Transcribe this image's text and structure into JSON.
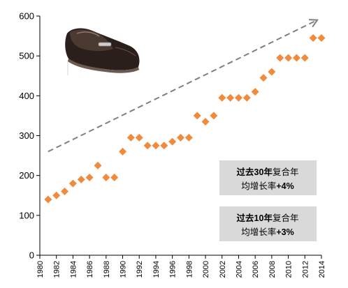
{
  "chart_data": {
    "type": "scatter",
    "title": "",
    "xlabel": "",
    "ylabel": "",
    "xlim": [
      1980,
      2014
    ],
    "ylim": [
      0,
      600
    ],
    "yticks": [
      0,
      100,
      200,
      300,
      400,
      500,
      600
    ],
    "xticks": [
      1980,
      1982,
      1984,
      1986,
      1988,
      1990,
      1992,
      1994,
      1996,
      1998,
      2000,
      2002,
      2004,
      2006,
      2008,
      2010,
      2012,
      2014
    ],
    "marker_color": "#F28A3C",
    "trend_color": "#7F7F7F",
    "grid": false,
    "series": [
      {
        "x": [
          1981,
          1982,
          1983,
          1984,
          1985,
          1986,
          1987,
          1988,
          1989,
          1990,
          1991,
          1992,
          1993,
          1994,
          1995,
          1996,
          1997,
          1998,
          1999,
          2000,
          2001,
          2002,
          2003,
          2004,
          2005,
          2006,
          2007,
          2008,
          2009,
          2010,
          2011,
          2012,
          2013,
          2014
        ],
        "y": [
          140,
          150,
          160,
          180,
          190,
          195,
          225,
          195,
          195,
          260,
          295,
          295,
          275,
          275,
          275,
          285,
          295,
          295,
          350,
          335,
          350,
          395,
          395,
          395,
          395,
          410,
          445,
          460,
          495,
          495,
          495,
          495,
          545,
          545
        ]
      }
    ],
    "trend_arrow": {
      "from": [
        1981,
        260
      ],
      "to": [
        2013.5,
        590
      ]
    },
    "annotations": [
      {
        "pre": "过去",
        "num": "30年",
        "mid": "复合年",
        "line2_pre": "均增长率",
        "line2_num": "+4%"
      },
      {
        "pre": "过去",
        "num": "10年",
        "mid": "复合年",
        "line2_pre": "均增长率",
        "line2_num": "+3%"
      }
    ],
    "image": "loafer-shoe"
  }
}
